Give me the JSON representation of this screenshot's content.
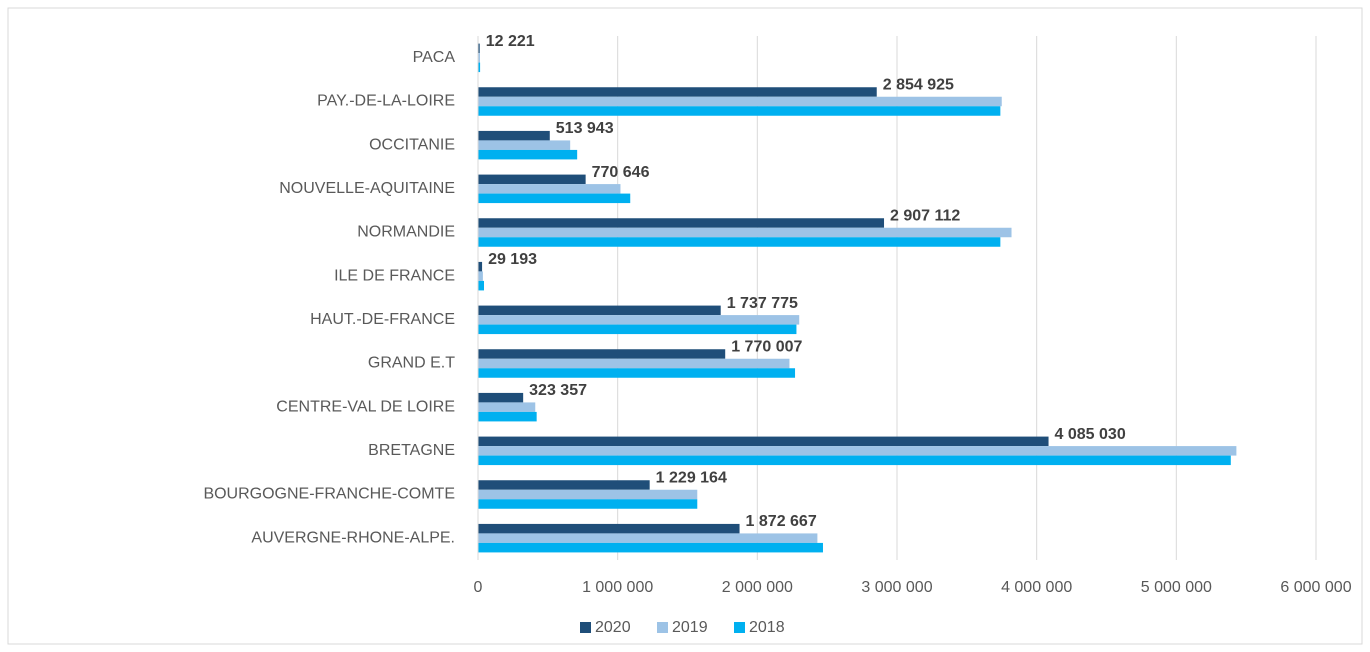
{
  "chart_data": {
    "type": "bar",
    "orientation": "horizontal",
    "categories": [
      "PACA",
      "PAY.-DE-LA-LOIRE",
      "OCCITANIE",
      "NOUVELLE-AQUITAINE",
      "NORMANDIE",
      "ILE DE FRANCE",
      "HAUT.-DE-FRANCE",
      "GRAND E.T",
      "CENTRE-VAL DE LOIRE",
      "BRETAGNE",
      "BOURGOGNE-FRANCHE-COMTE",
      "AUVERGNE-RHONE-ALPE."
    ],
    "series": [
      {
        "name": "2020",
        "color": "#1f4e79",
        "values": [
          12221,
          2854925,
          513943,
          770646,
          2907112,
          29193,
          1737775,
          1770007,
          323357,
          4085030,
          1229164,
          1872667
        ],
        "value_labels": [
          "12 221",
          "2 854 925",
          "513 943",
          "770 646",
          "2 907 112",
          "29 193",
          "1 737 775",
          "1 770 007",
          "323 357",
          "4 085 030",
          "1 229 164",
          "1 872 667"
        ]
      },
      {
        "name": "2019",
        "color": "#9dc3e6",
        "values": [
          14000,
          3750000,
          660000,
          1020000,
          3820000,
          35000,
          2300000,
          2230000,
          410000,
          5430000,
          1570000,
          2430000
        ]
      },
      {
        "name": "2018",
        "color": "#00b0f0",
        "values": [
          15000,
          3740000,
          710000,
          1090000,
          3740000,
          43000,
          2280000,
          2270000,
          420000,
          5390000,
          1570000,
          2470000
        ]
      }
    ],
    "xlim": [
      0,
      6000000
    ],
    "xticks": [
      0,
      {
        "value": 1000000,
        "label": "1 000 000"
      },
      {
        "value": 2000000,
        "label": "2 000 000"
      },
      {
        "value": 3000000,
        "label": "3 000 000"
      },
      {
        "value": 4000000,
        "label": "4 000 000"
      },
      {
        "value": 5000000,
        "label": "5 000 000"
      },
      {
        "value": 6000000,
        "label": "6 000 000"
      }
    ],
    "grid": true,
    "legend": "bottom"
  }
}
